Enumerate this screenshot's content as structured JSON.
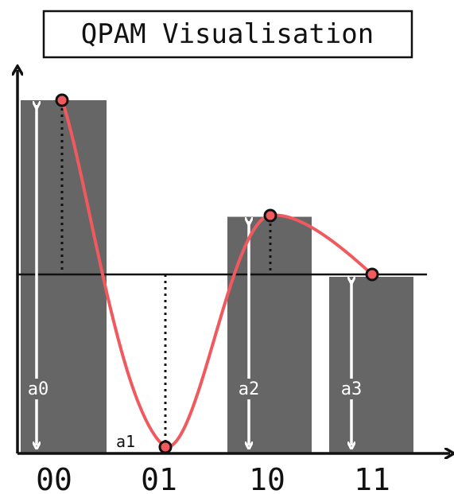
{
  "title": "QPAM Visualisation",
  "colors": {
    "bar": "#666666",
    "curve": "#f05a5e",
    "point_stroke": "#111111",
    "axis": "#111111",
    "arrow": "#ffffff"
  },
  "states": [
    {
      "tick": "00",
      "label": "a0",
      "level": 1.0
    },
    {
      "tick": "01",
      "label": "a1",
      "level": 0.0
    },
    {
      "tick": "10",
      "label": "a2",
      "level": 0.67
    },
    {
      "tick": "11",
      "label": "a3",
      "level": 0.5
    }
  ]
}
